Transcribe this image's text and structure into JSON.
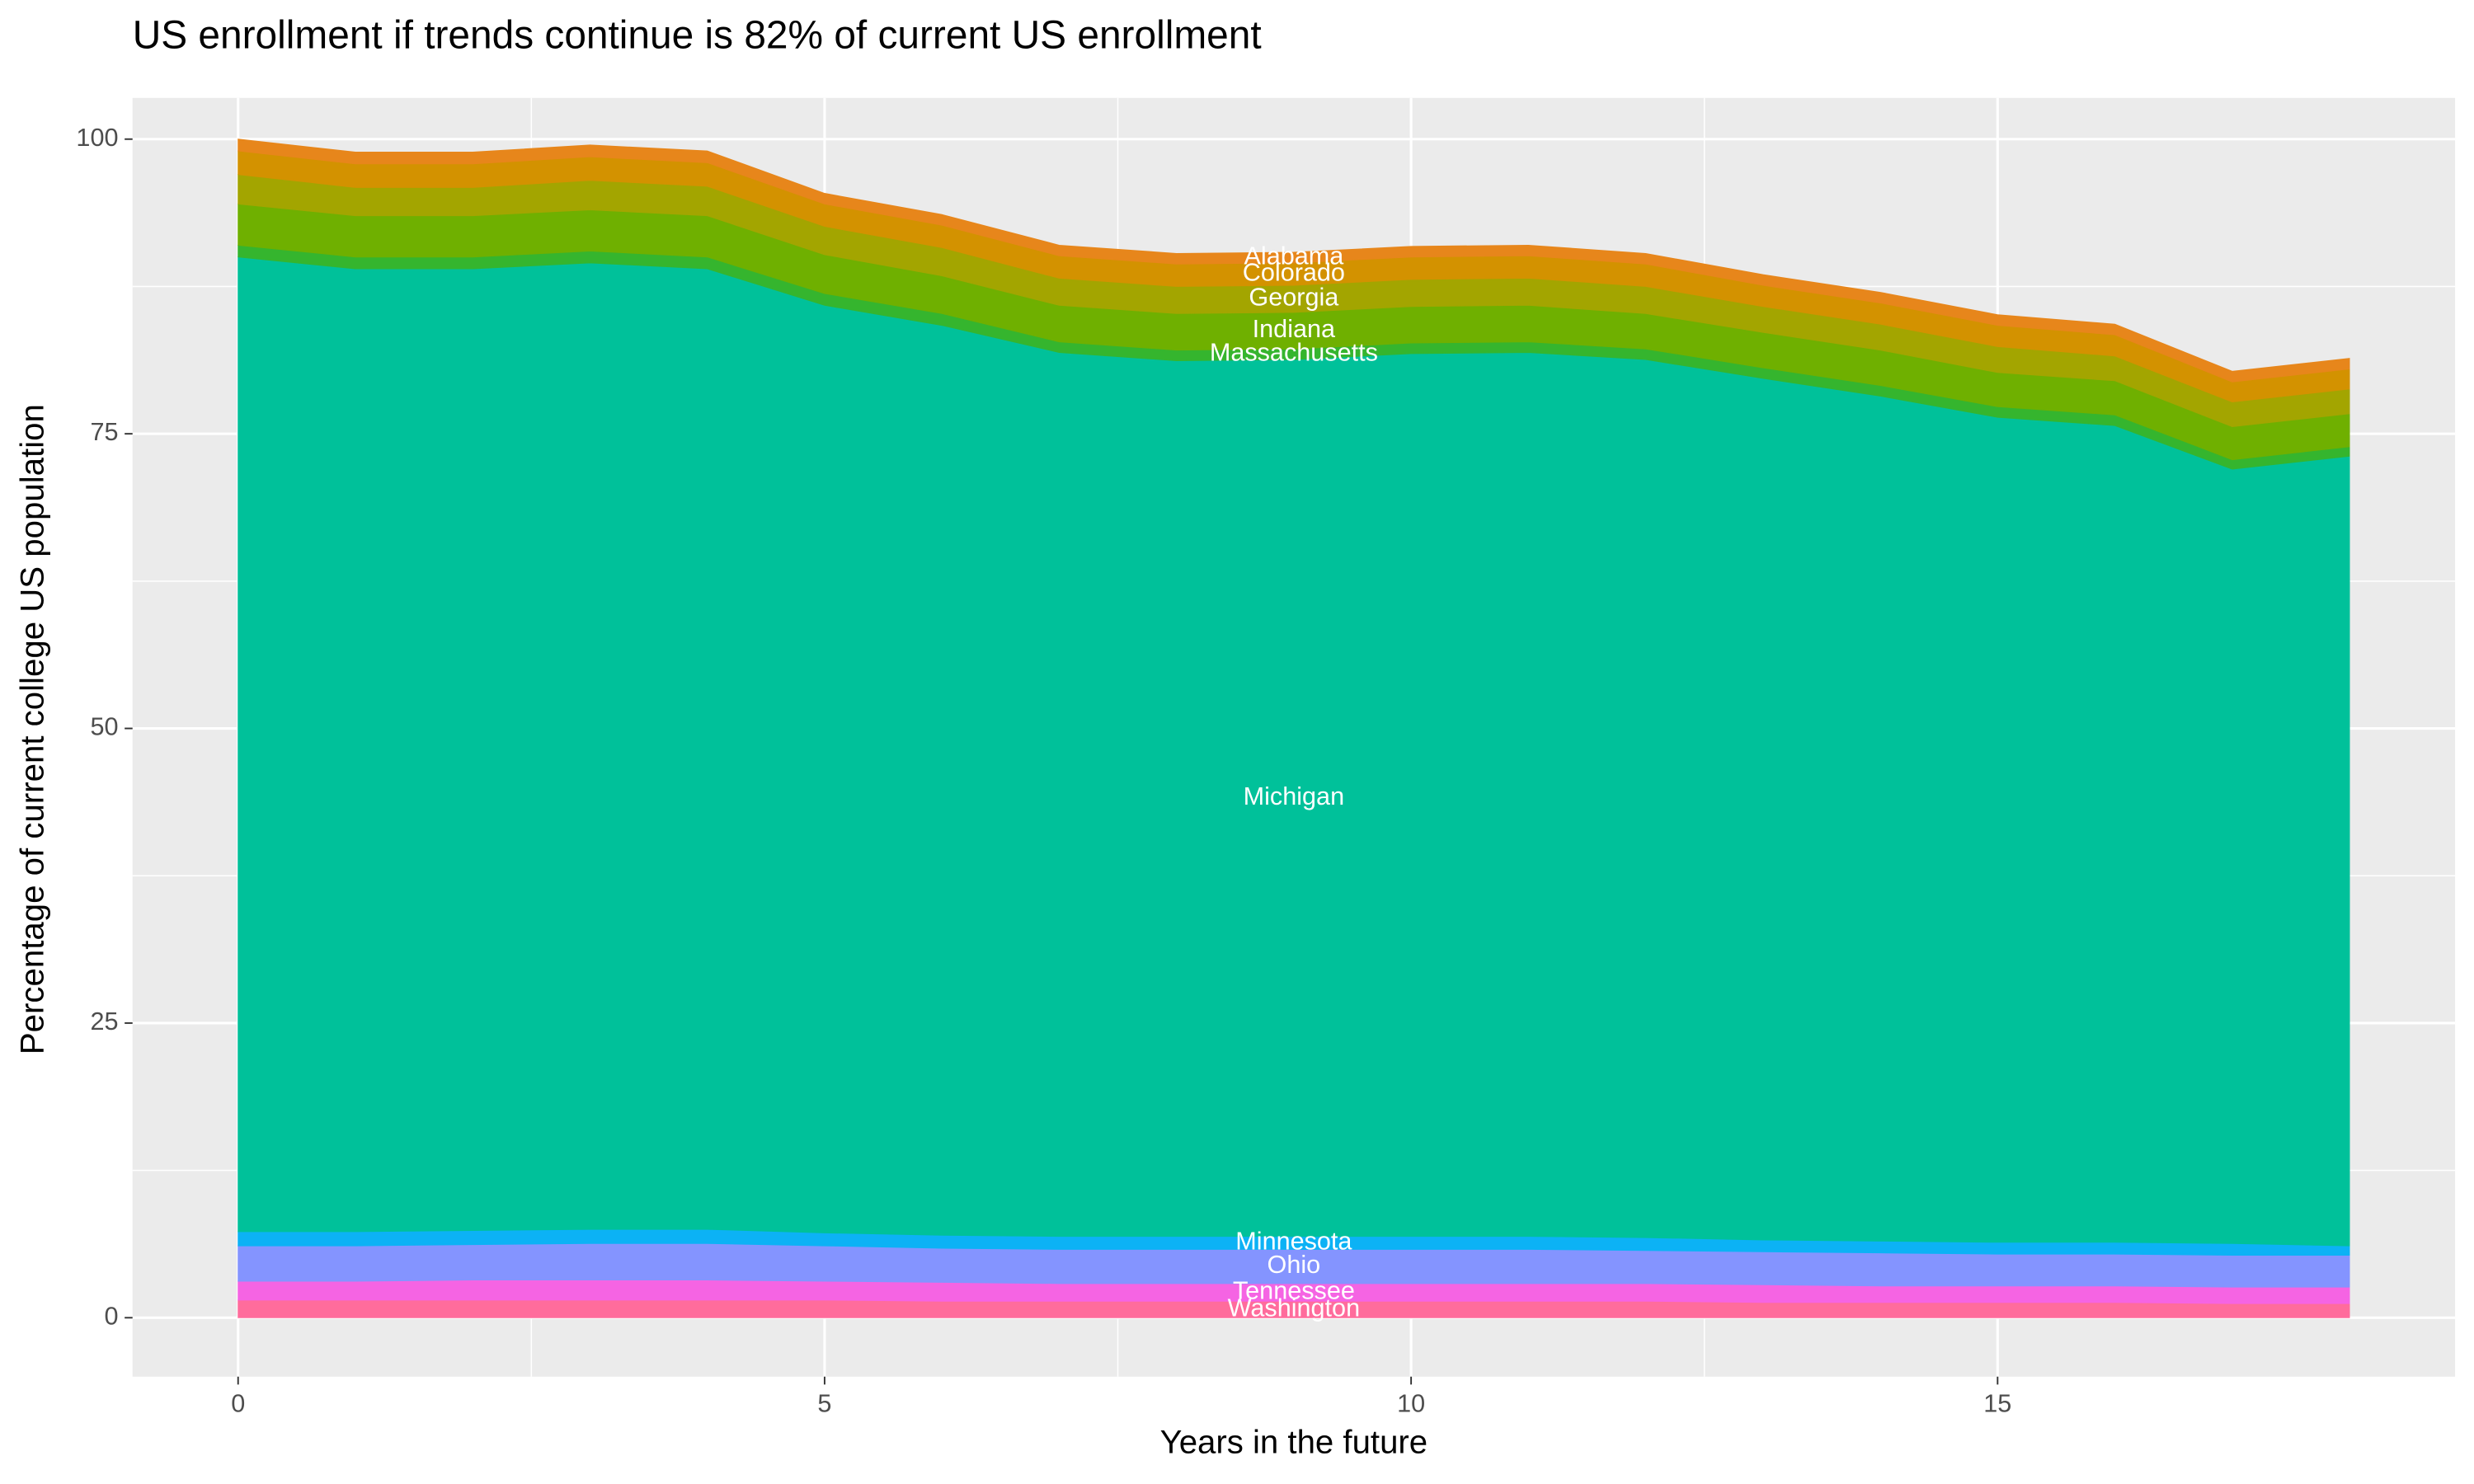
{
  "chart_data": {
    "type": "area",
    "stacked": true,
    "title": "US enrollment if trends continue is 82% of current US enrollment",
    "x_label": "Years in the future",
    "y_label": "Percentage of current college US population",
    "x": [
      0,
      1,
      2,
      3,
      4,
      5,
      6,
      7,
      8,
      9,
      10,
      11,
      12,
      13,
      14,
      15,
      16,
      17,
      18
    ],
    "xlim": [
      -0.9,
      18.9
    ],
    "xticks": [
      0,
      5,
      10,
      15
    ],
    "ylim": [
      -5,
      103.5
    ],
    "yticks": [
      0,
      25,
      50,
      75,
      100
    ],
    "grid": true,
    "label_x": 9,
    "series": [
      {
        "name": "Washington",
        "color": "#FF6C9C",
        "values": [
          1.5,
          1.5,
          1.5,
          1.5,
          1.5,
          1.5,
          1.4,
          1.4,
          1.4,
          1.4,
          1.4,
          1.4,
          1.4,
          1.3,
          1.3,
          1.3,
          1.3,
          1.2,
          1.2
        ]
      },
      {
        "name": "Tennessee",
        "color": "#F564E3",
        "values": [
          1.6,
          1.6,
          1.7,
          1.7,
          1.7,
          1.6,
          1.6,
          1.5,
          1.5,
          1.5,
          1.5,
          1.5,
          1.5,
          1.5,
          1.4,
          1.4,
          1.4,
          1.4,
          1.4
        ]
      },
      {
        "name": "Ohio",
        "color": "#8494FF",
        "values": [
          3,
          3,
          3,
          3.1,
          3.1,
          3,
          2.9,
          2.9,
          2.9,
          2.9,
          2.9,
          2.9,
          2.8,
          2.8,
          2.8,
          2.7,
          2.7,
          2.7,
          2.7
        ]
      },
      {
        "name": "Minnesota",
        "color": "#0CB2F5",
        "values": [
          1.2,
          1.2,
          1.2,
          1.2,
          1.2,
          1.1,
          1.1,
          1.1,
          1.1,
          1.1,
          1.1,
          1.1,
          1.1,
          1.0,
          1.0,
          1.0,
          1.0,
          1.0,
          0.8
        ]
      },
      {
        "name": "Michigan",
        "color": "#00C19A",
        "values": [
          82.7,
          81.7,
          81.6,
          82,
          81.5,
          78.7,
          77.2,
          75,
          74.3,
          74.4,
          74.9,
          75,
          74.5,
          73.1,
          71.7,
          70,
          69.3,
          65.7,
          67.0
        ]
      },
      {
        "name": "Massachusetts",
        "color": "#35B52E",
        "values": [
          1.0,
          1.0,
          1.0,
          1.0,
          1.0,
          1.0,
          1.0,
          0.9,
          0.9,
          0.9,
          0.9,
          0.9,
          0.9,
          0.9,
          0.9,
          0.9,
          0.9,
          0.8,
          0.8
        ]
      },
      {
        "name": "Indiana",
        "color": "#6FB000",
        "values": [
          3.5,
          3.5,
          3.5,
          3.5,
          3.5,
          3.3,
          3.2,
          3.1,
          3.1,
          3.1,
          3.1,
          3.1,
          3.0,
          3.0,
          3.0,
          2.9,
          2.9,
          2.8,
          2.8
        ]
      },
      {
        "name": "Georgia",
        "color": "#A3A500",
        "values": [
          2.5,
          2.4,
          2.4,
          2.5,
          2.5,
          2.4,
          2.4,
          2.3,
          2.3,
          2.3,
          2.3,
          2.3,
          2.3,
          2.2,
          2.2,
          2.2,
          2.1,
          2.1,
          2.1
        ]
      },
      {
        "name": "Colorado",
        "color": "#D39200",
        "values": [
          2.0,
          2.0,
          2.0,
          2.0,
          2.0,
          1.9,
          1.9,
          1.9,
          1.9,
          1.9,
          1.9,
          1.9,
          1.9,
          1.8,
          1.8,
          1.8,
          1.8,
          1.7,
          1.7
        ]
      },
      {
        "name": "Alabama",
        "color": "#E7861B",
        "values": [
          1.0,
          1.0,
          1.0,
          1.0,
          1.0,
          0.9,
          0.9,
          0.9,
          0.9,
          0.9,
          0.9,
          0.9,
          0.9,
          0.9,
          0.9,
          0.9,
          0.9,
          0.9,
          0.9
        ]
      }
    ]
  }
}
